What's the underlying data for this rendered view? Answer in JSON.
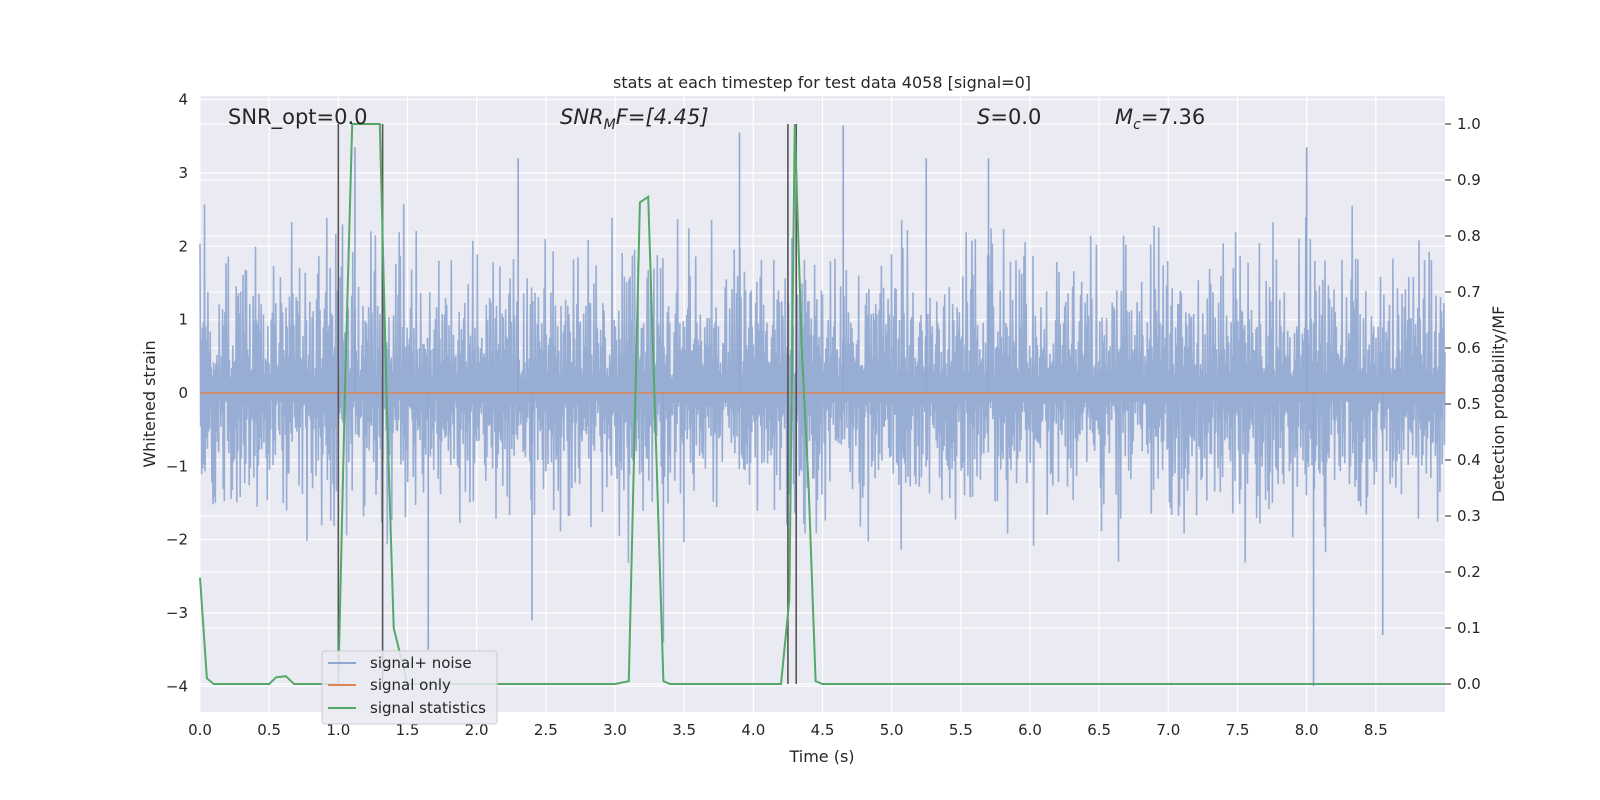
{
  "chart_data": {
    "type": "line",
    "title": "stats at each timestep for test data 4058 [signal=0]",
    "xlabel": "Time (s)",
    "ylabel": "Whitened strain",
    "y2label": "Detection probability/MF",
    "xlim": [
      0.0,
      9.0
    ],
    "ylim": [
      -4.35,
      4.05
    ],
    "y2lim": [
      -0.05,
      1.05
    ],
    "x_ticks": [
      "0.0",
      "0.5",
      "1.0",
      "1.5",
      "2.0",
      "2.5",
      "3.0",
      "3.5",
      "4.0",
      "4.5",
      "5.0",
      "5.5",
      "6.0",
      "6.5",
      "7.0",
      "7.5",
      "8.0",
      "8.5"
    ],
    "y_ticks": [
      "4",
      "3",
      "2",
      "1",
      "0",
      "−1",
      "−2",
      "−3",
      "−4"
    ],
    "y2_ticks": [
      "1.0",
      "0.9",
      "0.8",
      "0.7",
      "0.6",
      "0.5",
      "0.4",
      "0.3",
      "0.2",
      "0.1",
      "0.0"
    ],
    "grid": true,
    "legend_position": "lower-left",
    "annotations": {
      "snr_opt": "SNR_opt=0.0",
      "snr_mf_main": "SNR",
      "snr_mf_sub": "M",
      "snr_mf_tail": "F=[4.45]",
      "s_main": "S",
      "s_tail": "=0.0",
      "mc_main": "M",
      "mc_sub": "c",
      "mc_tail": "=7.36"
    },
    "series": [
      {
        "name": "signal+ noise",
        "color": "#8fa6d0",
        "axis": "left",
        "description_values": "noise band roughly between -1.8 and 2.0 with spikes up to 3.6 and down to -4.0",
        "spikes_x": [
          1.03,
          1.12,
          1.65,
          2.3,
          2.4,
          3.35,
          3.9,
          4.65,
          5.25,
          5.7,
          8.0,
          8.05,
          8.55
        ],
        "spikes_y": [
          2.3,
          3.35,
          -3.5,
          3.2,
          -3.1,
          -3.4,
          3.55,
          3.65,
          3.2,
          3.2,
          3.35,
          -4.0,
          -3.3
        ]
      },
      {
        "name": "signal only",
        "color": "#dd8452",
        "axis": "left",
        "x": [
          0.0,
          9.0
        ],
        "y": [
          0.0,
          0.0
        ]
      },
      {
        "name": "signal statistics",
        "color": "#55a868",
        "axis": "right",
        "x": [
          0.0,
          0.05,
          0.1,
          0.5,
          0.55,
          0.62,
          0.68,
          1.0,
          1.05,
          1.1,
          1.2,
          1.3,
          1.35,
          1.4,
          1.5,
          3.0,
          3.1,
          3.18,
          3.24,
          3.3,
          3.35,
          3.4,
          3.6,
          4.0,
          4.2,
          4.26,
          4.3,
          4.35,
          4.4,
          4.45,
          4.5,
          4.7,
          9.0
        ],
        "y": [
          0.19,
          0.01,
          0.0,
          0.0,
          0.012,
          0.014,
          0.0,
          0.0,
          0.55,
          1.0,
          1.0,
          1.0,
          0.5,
          0.1,
          0.0,
          0.0,
          0.005,
          0.86,
          0.87,
          0.4,
          0.005,
          0.0,
          0.0,
          0.0,
          0.0,
          0.15,
          1.0,
          0.6,
          0.35,
          0.005,
          0.0,
          0.0,
          0.0
        ]
      }
    ],
    "vertical_markers_x": [
      1.0,
      1.32,
      4.25,
      4.31
    ],
    "vertical_markers_color": "#555555"
  }
}
